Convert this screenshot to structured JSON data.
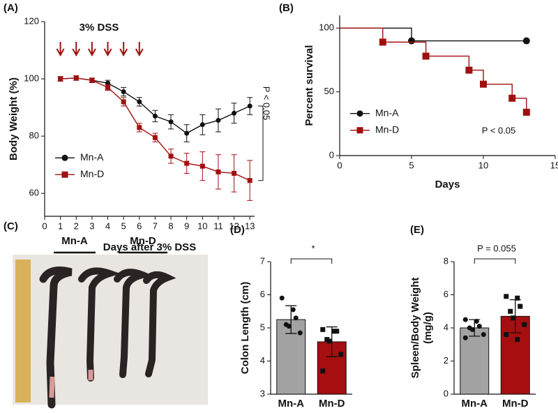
{
  "chart_data": [
    {
      "type": "line",
      "panel": "(A)",
      "ylabel": "Body Weight (%)",
      "xlabel": "Days after 3% DSS",
      "x": [
        1,
        2,
        3,
        4,
        5,
        6,
        7,
        8,
        9,
        10,
        11,
        12,
        13
      ],
      "xlim": [
        0,
        13.3
      ],
      "xticks": [
        0,
        1,
        2,
        3,
        4,
        5,
        6,
        7,
        8,
        9,
        10,
        11,
        12,
        13
      ],
      "ylim": [
        52,
        120
      ],
      "yticks": [
        60,
        80,
        100,
        120
      ],
      "legend": "lower left",
      "arrows": [
        1,
        2,
        3,
        4,
        5,
        6
      ],
      "annotations": [
        "3% DSS",
        "P < 0.05"
      ],
      "series": [
        {
          "name": "Mn-A",
          "color": "#111111",
          "marker": "circle",
          "values": [
            100,
            100.3,
            99.5,
            98.5,
            95.5,
            92,
            87,
            85,
            81,
            84,
            85.5,
            88,
            90.5
          ],
          "errors": [
            0.8,
            0.8,
            0.8,
            1,
            1.5,
            1.5,
            2,
            2.5,
            3,
            3.5,
            4,
            3.5,
            3
          ]
        },
        {
          "name": "Mn-D",
          "color": "#a01010",
          "marker": "square",
          "values": [
            100,
            100.3,
            99.5,
            97,
            92,
            83,
            79.5,
            73,
            70.5,
            69.5,
            67.5,
            67,
            64.5
          ],
          "errors": [
            0.8,
            0.8,
            0.8,
            1,
            1.5,
            1.5,
            1.5,
            2.5,
            3.5,
            5,
            6,
            6.5,
            7
          ]
        }
      ]
    },
    {
      "type": "step",
      "panel": "(B)",
      "ylabel": "Percent survival",
      "xlabel": "Days",
      "xlim": [
        0,
        15
      ],
      "xticks": [
        0,
        5,
        10,
        15
      ],
      "ylim": [
        0,
        110
      ],
      "yticks": [
        0,
        50,
        100
      ],
      "legend": "lower left",
      "annotations": [
        "P < 0.05"
      ],
      "series": [
        {
          "name": "Mn-A",
          "color": "#111111",
          "marker": "circle",
          "x": [
            0,
            5,
            13
          ],
          "values": [
            100,
            90,
            90
          ]
        },
        {
          "name": "Mn-D",
          "color": "#a01010",
          "marker": "square",
          "x": [
            0,
            3,
            6,
            9,
            10,
            12,
            13
          ],
          "values": [
            100,
            89,
            78,
            67,
            56,
            45,
            34
          ]
        }
      ]
    },
    {
      "type": "bar",
      "panel": "(D)",
      "ylabel": [
        "Colon Length (cm)"
      ],
      "categories": [
        "Mn-A",
        "Mn-D"
      ],
      "colors": [
        "#a3a3a3",
        "#a50f0f"
      ],
      "point_markers": [
        "circle",
        "square"
      ],
      "ylim": [
        3,
        7
      ],
      "yticks": [
        3,
        4,
        5,
        6,
        7
      ],
      "values": [
        5.25,
        4.58
      ],
      "errors": [
        0.42,
        0.45
      ],
      "points": [
        [
          5.9,
          5.55,
          5.3,
          5.1,
          5.05,
          4.85
        ],
        [
          4.95,
          4.9,
          4.9,
          4.65,
          4.6,
          4.2,
          3.7
        ]
      ],
      "annotations": [
        "*"
      ]
    },
    {
      "type": "bar",
      "panel": "(E)",
      "ylabel": [
        "Spleen/Body Weight",
        "(mg/g)"
      ],
      "categories": [
        "Mn-A",
        "Mn-D"
      ],
      "colors": [
        "#a3a3a3",
        "#a50f0f"
      ],
      "point_markers": [
        "circle",
        "square"
      ],
      "ylim": [
        0,
        8
      ],
      "yticks": [
        0,
        2,
        4,
        6,
        8
      ],
      "values": [
        4.0,
        4.7
      ],
      "errors": [
        0.5,
        1.0
      ],
      "points": [
        [
          4.5,
          4.4,
          4.1,
          4.0,
          3.9,
          3.6,
          3.4
        ],
        [
          5.9,
          5.8,
          5.3,
          5.0,
          4.6,
          4.2,
          3.6,
          3.3
        ]
      ],
      "annotations": [
        "P = 0.055"
      ]
    }
  ],
  "photo": {
    "panel": "(C)",
    "labels": [
      "Mn-A",
      "Mn-D"
    ]
  }
}
